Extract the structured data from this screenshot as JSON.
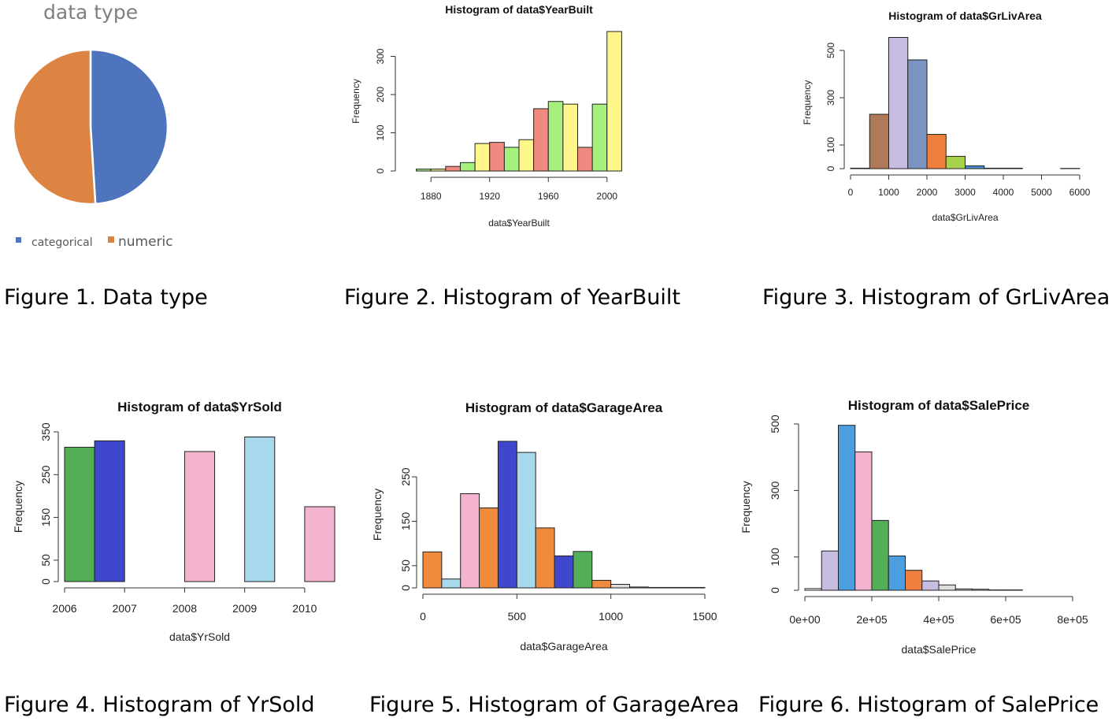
{
  "captions": [
    "Figure 1. Data type",
    "Figure 2. Histogram of YearBuilt",
    "Figure 3. Histogram of GrLivArea",
    "Figure 4. Histogram of YrSold",
    "Figure 5. Histogram of GarageArea",
    "Figure 6. Histogram of SalePrice"
  ],
  "chart_data": [
    {
      "type": "pie",
      "title": "data type",
      "categories": [
        "categorical",
        "numeric"
      ],
      "values": [
        49,
        51
      ],
      "colors": [
        "#4e74be",
        "#de8443"
      ],
      "legend_position": "bottom-left"
    },
    {
      "type": "bar",
      "title": "Histogram of data$YearBuilt",
      "xlabel": "data$YearBuilt",
      "ylabel": "Frequency",
      "bin_start": 1870,
      "bin_width": 10,
      "values": [
        5,
        5,
        12,
        22,
        72,
        75,
        62,
        82,
        163,
        182,
        175,
        62,
        175,
        365
      ],
      "colors": [
        "#a6f07e",
        "#fff68b",
        "#f08a81",
        "#a6f07e",
        "#fff68b",
        "#f08a81",
        "#a6f07e",
        "#fff68b",
        "#f08a81",
        "#a6f07e",
        "#fff68b",
        "#f08a81",
        "#a6f07e",
        "#fff68b"
      ],
      "xlim": [
        1860,
        2020
      ],
      "ylim": [
        0,
        365
      ],
      "xticks": [
        1880,
        1920,
        1960,
        2000
      ],
      "yticks": [
        0,
        100,
        200,
        300
      ]
    },
    {
      "type": "bar",
      "title": "Histogram of data$GrLivArea",
      "xlabel": "data$GrLivArea",
      "ylabel": "Frequency",
      "bin_start": 0,
      "bin_width": 500,
      "values": [
        2,
        230,
        555,
        460,
        145,
        52,
        12,
        2,
        2,
        0,
        0,
        1
      ],
      "colors": [
        "#b9c8e0",
        "#b07a58",
        "#c8bde0",
        "#7a93c0",
        "#f07e3c",
        "#a8d24b",
        "#4b8bd0",
        "#f4c1d8",
        "#b9c8e0",
        "#b07a58",
        "#c8bde0",
        "#7a93c0"
      ],
      "xlim": [
        0,
        6000
      ],
      "ylim": [
        0,
        560
      ],
      "xticks": [
        0,
        1000,
        2000,
        3000,
        4000,
        5000,
        6000
      ],
      "yticks": [
        0,
        100,
        300,
        500
      ]
    },
    {
      "type": "bar",
      "title": "Histogram of data$YrSold",
      "xlabel": "data$YrSold",
      "ylabel": "Frequency",
      "bin_start": 2006,
      "bin_width": 0.5,
      "values": [
        314,
        329,
        0,
        0,
        304,
        0,
        338,
        0,
        175
      ],
      "colors": [
        "#52ae57",
        "#3f48cc",
        "#f08a3c",
        "#a7d8ec",
        "#f4b3ce",
        "#52ae57",
        "#a7d8ec",
        "#3f48cc",
        "#f4b3ce"
      ],
      "xlim": [
        2006,
        2010.5
      ],
      "ylim": [
        0,
        350
      ],
      "xticks": [
        2006,
        2007,
        2008,
        2009,
        2010
      ],
      "yticks": [
        0,
        50,
        150,
        250,
        350
      ]
    },
    {
      "type": "bar",
      "title": "Histogram of data$GarageArea",
      "xlabel": "data$GarageArea",
      "ylabel": "Frequency",
      "bin_start": 0,
      "bin_width": 100,
      "values": [
        81,
        20,
        212,
        180,
        330,
        305,
        135,
        72,
        82,
        17,
        8,
        2,
        1,
        1,
        1
      ],
      "colors": [
        "#f08a3c",
        "#a7d8ec",
        "#f4b3ce",
        "#f08a3c",
        "#3f48cc",
        "#a7d8ec",
        "#f08a3c",
        "#3f48cc",
        "#52ae57",
        "#f08a3c",
        "#dddddd",
        "#dddddd",
        "#dddddd",
        "#dddddd",
        "#dddddd"
      ],
      "xlim": [
        0,
        1500
      ],
      "ylim": [
        0,
        330
      ],
      "xticks": [
        0,
        500,
        1000,
        1500
      ],
      "yticks": [
        0,
        50,
        150,
        250
      ]
    },
    {
      "type": "bar",
      "title": "Histogram of data$SalePrice",
      "xlabel": "data$SalePrice",
      "ylabel": "Frequency",
      "bin_start": 0,
      "bin_width": 50000,
      "values": [
        5,
        118,
        496,
        416,
        210,
        103,
        60,
        28,
        16,
        4,
        3,
        1,
        1,
        0,
        0,
        0
      ],
      "colors": [
        "#ffffff",
        "#c8bde0",
        "#4b9fe0",
        "#f4b3ce",
        "#52ae57",
        "#4b9fe0",
        "#f07e3c",
        "#c8bde0",
        "#dddddd",
        "#dddddd",
        "#ffffff",
        "#ffffff",
        "#ffffff",
        "#ffffff",
        "#ffffff",
        "#ffffff"
      ],
      "xlim": [
        0,
        800000
      ],
      "ylim": [
        0,
        500
      ],
      "xticks": [
        0,
        200000,
        400000,
        600000,
        800000
      ],
      "xtick_labels": [
        "0e+00",
        "2e+05",
        "4e+05",
        "6e+05",
        "8e+05"
      ],
      "yticks": [
        0,
        100,
        300,
        500
      ]
    }
  ]
}
